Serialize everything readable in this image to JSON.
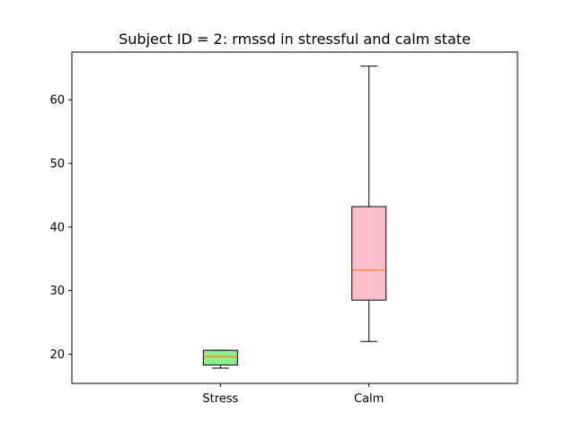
{
  "chart_data": {
    "type": "boxplot",
    "title": "Subject ID = 2: rmssd in stressful and calm state",
    "xlabel": "",
    "ylabel": "",
    "categories": [
      "Stress",
      "Calm"
    ],
    "boxes": [
      {
        "category": "Stress",
        "whisker_low": 17.8,
        "q1": 18.3,
        "median": 19.6,
        "q3": 20.6,
        "whisker_high": 20.6,
        "fill": "#90ee90"
      },
      {
        "category": "Calm",
        "whisker_low": 22.0,
        "q1": 28.5,
        "median": 33.2,
        "q3": 43.2,
        "whisker_high": 65.3,
        "fill": "#ffc0cb"
      }
    ],
    "ylim": [
      15.4,
      67.5
    ],
    "yticks": [
      20,
      30,
      40,
      50,
      60
    ],
    "grid": false,
    "legend": "none",
    "median_color": "#ff7f0e",
    "box_edge_color": "#000000"
  }
}
